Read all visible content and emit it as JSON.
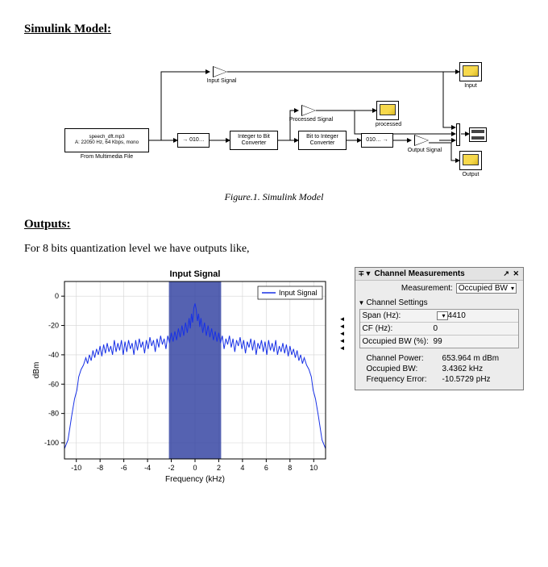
{
  "headings": {
    "simulink": "Simulink Model:",
    "outputs": "Outputs:"
  },
  "body": {
    "outputs_intro": "For 8 bits quantization level we have outputs like,"
  },
  "figure1_caption": "Figure.1.      Simulink Model",
  "simulink": {
    "source_block": "speech_dft.mp3\nA: 22050 Hz, 64 Kbps, mono",
    "source_caption": "From Multimedia File",
    "quantizer_text": "→ 010…",
    "int2bit": "Integer to Bit\nConverter",
    "bit2int": "Bit to Integer\nConverter",
    "dequant_text": "010… →",
    "input_gain_label": "Input Signal",
    "processed_gain_label": "Processed Signal",
    "output_gain_label": "Output Signal",
    "scope_input": "Input",
    "scope_processed": "processed",
    "scope_output": "Output"
  },
  "spectrum": {
    "title": "Input Signal",
    "legend": "Input Signal",
    "xlabel": "Frequency (kHz)",
    "ylabel": "dBm",
    "xlim": [
      -11,
      11
    ],
    "ylim": [
      -111,
      10
    ],
    "xticks": [
      -10,
      -8,
      -6,
      -4,
      -2,
      0,
      2,
      4,
      6,
      8,
      10
    ],
    "yticks": [
      0,
      -20,
      -40,
      -60,
      -80,
      -100
    ],
    "band": {
      "from": -2.2,
      "to": 2.2,
      "color": "#2f3fa0"
    },
    "line_color": "#1831e6",
    "background_color": "#ffffff",
    "grid_color": "#d4d4d4",
    "axis_color": "#000000",
    "title_fontsize": 11,
    "tick_fontsize": 9,
    "label_fontsize": 10,
    "series": [
      [
        -11,
        -104
      ],
      [
        -10.7,
        -98
      ],
      [
        -10.4,
        -82
      ],
      [
        -10.15,
        -70
      ],
      [
        -9.95,
        -64
      ],
      [
        -9.8,
        -55
      ],
      [
        -9.6,
        -50
      ],
      [
        -9.4,
        -47
      ],
      [
        -9.2,
        -42
      ],
      [
        -9.05,
        -46
      ],
      [
        -8.9,
        -40
      ],
      [
        -8.75,
        -44
      ],
      [
        -8.6,
        -37
      ],
      [
        -8.45,
        -42
      ],
      [
        -8.3,
        -36
      ],
      [
        -8.15,
        -40
      ],
      [
        -8.0,
        -34
      ],
      [
        -7.85,
        -41
      ],
      [
        -7.7,
        -33
      ],
      [
        -7.55,
        -39
      ],
      [
        -7.4,
        -32
      ],
      [
        -7.25,
        -38
      ],
      [
        -7.1,
        -34
      ],
      [
        -6.95,
        -40
      ],
      [
        -6.8,
        -30
      ],
      [
        -6.65,
        -38
      ],
      [
        -6.5,
        -32
      ],
      [
        -6.35,
        -37
      ],
      [
        -6.2,
        -30
      ],
      [
        -6.05,
        -40
      ],
      [
        -5.9,
        -31
      ],
      [
        -5.75,
        -38
      ],
      [
        -5.6,
        -30
      ],
      [
        -5.45,
        -36
      ],
      [
        -5.3,
        -32
      ],
      [
        -5.15,
        -40
      ],
      [
        -5.0,
        -30
      ],
      [
        -4.85,
        -37
      ],
      [
        -4.7,
        -29
      ],
      [
        -4.55,
        -35
      ],
      [
        -4.4,
        -31
      ],
      [
        -4.25,
        -39
      ],
      [
        -4.1,
        -30
      ],
      [
        -3.95,
        -36
      ],
      [
        -3.8,
        -28
      ],
      [
        -3.65,
        -34
      ],
      [
        -3.5,
        -30
      ],
      [
        -3.35,
        -38
      ],
      [
        -3.2,
        -29
      ],
      [
        -3.05,
        -35
      ],
      [
        -2.9,
        -27
      ],
      [
        -2.75,
        -33
      ],
      [
        -2.6,
        -29
      ],
      [
        -2.45,
        -36
      ],
      [
        -2.3,
        -27
      ],
      [
        -2.15,
        -32
      ],
      [
        -2.0,
        -25
      ],
      [
        -1.85,
        -31
      ],
      [
        -1.7,
        -24
      ],
      [
        -1.55,
        -30
      ],
      [
        -1.4,
        -22
      ],
      [
        -1.25,
        -28
      ],
      [
        -1.1,
        -20
      ],
      [
        -0.95,
        -27
      ],
      [
        -0.8,
        -18
      ],
      [
        -0.65,
        -25
      ],
      [
        -0.5,
        -15
      ],
      [
        -0.4,
        -22
      ],
      [
        -0.3,
        -12
      ],
      [
        -0.2,
        -18
      ],
      [
        -0.1,
        -8
      ],
      [
        0,
        -5
      ],
      [
        0.1,
        -9
      ],
      [
        0.2,
        -17
      ],
      [
        0.3,
        -12
      ],
      [
        0.4,
        -21
      ],
      [
        0.5,
        -15
      ],
      [
        0.65,
        -25
      ],
      [
        0.8,
        -18
      ],
      [
        0.95,
        -27
      ],
      [
        1.1,
        -20
      ],
      [
        1.25,
        -28
      ],
      [
        1.4,
        -22
      ],
      [
        1.55,
        -30
      ],
      [
        1.7,
        -24
      ],
      [
        1.85,
        -31
      ],
      [
        2.0,
        -25
      ],
      [
        2.15,
        -32
      ],
      [
        2.3,
        -27
      ],
      [
        2.45,
        -36
      ],
      [
        2.6,
        -29
      ],
      [
        2.75,
        -33
      ],
      [
        2.9,
        -27
      ],
      [
        3.05,
        -35
      ],
      [
        3.2,
        -29
      ],
      [
        3.35,
        -38
      ],
      [
        3.5,
        -30
      ],
      [
        3.65,
        -34
      ],
      [
        3.8,
        -28
      ],
      [
        3.95,
        -36
      ],
      [
        4.1,
        -30
      ],
      [
        4.25,
        -39
      ],
      [
        4.4,
        -31
      ],
      [
        4.55,
        -35
      ],
      [
        4.7,
        -29
      ],
      [
        4.85,
        -37
      ],
      [
        5.0,
        -30
      ],
      [
        5.15,
        -40
      ],
      [
        5.3,
        -32
      ],
      [
        5.45,
        -36
      ],
      [
        5.6,
        -30
      ],
      [
        5.75,
        -38
      ],
      [
        5.9,
        -31
      ],
      [
        6.05,
        -40
      ],
      [
        6.2,
        -30
      ],
      [
        6.35,
        -37
      ],
      [
        6.5,
        -32
      ],
      [
        6.65,
        -38
      ],
      [
        6.8,
        -30
      ],
      [
        6.95,
        -40
      ],
      [
        7.1,
        -34
      ],
      [
        7.25,
        -38
      ],
      [
        7.4,
        -32
      ],
      [
        7.55,
        -39
      ],
      [
        7.7,
        -33
      ],
      [
        7.85,
        -41
      ],
      [
        8.0,
        -34
      ],
      [
        8.15,
        -40
      ],
      [
        8.3,
        -36
      ],
      [
        8.45,
        -42
      ],
      [
        8.6,
        -37
      ],
      [
        8.75,
        -44
      ],
      [
        8.9,
        -40
      ],
      [
        9.05,
        -46
      ],
      [
        9.2,
        -42
      ],
      [
        9.4,
        -47
      ],
      [
        9.6,
        -50
      ],
      [
        9.8,
        -55
      ],
      [
        9.95,
        -64
      ],
      [
        10.15,
        -70
      ],
      [
        10.4,
        -82
      ],
      [
        10.7,
        -98
      ],
      [
        11,
        -104
      ]
    ]
  },
  "panel": {
    "title": "Channel Measurements",
    "measurement_label": "Measurement:",
    "measurement_value": "Occupied BW",
    "settings_header": "Channel Settings",
    "span_label": "Span (Hz):",
    "span_value": "4410",
    "cf_label": "CF (Hz):",
    "cf_value": "0",
    "obw_pct_label": "Occupied BW (%):",
    "obw_pct_value": "99",
    "ch_power_label": "Channel Power:",
    "ch_power_value": "653.964 m dBm",
    "obw_label": "Occupied BW:",
    "obw_value": "3.4362 kHz",
    "ferr_label": "Frequency Error:",
    "ferr_value": "-10.5729 pHz"
  }
}
